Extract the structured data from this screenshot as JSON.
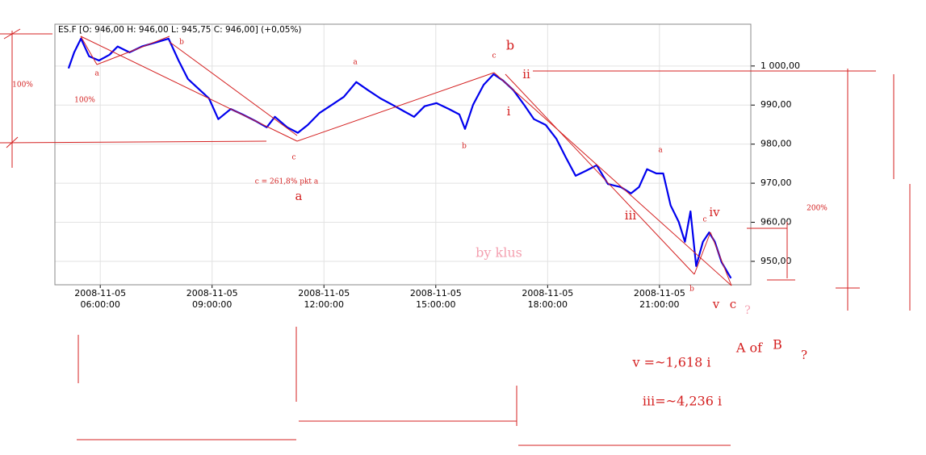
{
  "chart_data": {
    "type": "line",
    "header": "ES.F [O: 946,00  H: 946,00  L: 945,75  C: 946,00] (+0,05%)",
    "color": "#0000ee",
    "grid": true,
    "x": [
      "2008-11-05 05:09:00",
      "2008-11-05 05:18:00",
      "2008-11-05 05:29:00",
      "2008-11-05 05:42:00",
      "2008-11-05 05:58:00",
      "2008-11-05 06:15:00",
      "2008-11-05 06:28:00",
      "2008-11-05 06:47:00",
      "2008-11-05 07:07:00",
      "2008-11-05 07:33:00",
      "2008-11-05 07:50:00",
      "2008-11-05 08:06:00",
      "2008-11-05 08:21:00",
      "2008-11-05 08:38:00",
      "2008-11-05 08:55:00",
      "2008-11-05 09:10:00",
      "2008-11-05 09:30:00",
      "2008-11-05 09:49:00",
      "2008-11-05 10:09:00",
      "2008-11-05 10:28:00",
      "2008-11-05 10:41:00",
      "2008-11-05 11:01:00",
      "2008-11-05 11:18:00",
      "2008-11-05 11:34:00",
      "2008-11-05 11:53:00",
      "2008-11-05 12:13:00",
      "2008-11-05 12:32:00",
      "2008-11-05 12:52:00",
      "2008-11-05 13:11:00",
      "2008-11-05 13:31:00",
      "2008-11-05 13:50:00",
      "2008-11-05 14:09:00",
      "2008-11-05 14:25:00",
      "2008-11-05 14:42:00",
      "2008-11-05 15:01:00",
      "2008-11-05 15:21:00",
      "2008-11-05 15:38:00",
      "2008-11-05 15:47:00",
      "2008-11-05 16:00:00",
      "2008-11-05 16:17:00",
      "2008-11-05 16:33:00",
      "2008-11-05 16:48:00",
      "2008-11-05 17:05:00",
      "2008-11-05 17:22:00",
      "2008-11-05 17:38:00",
      "2008-11-05 17:57:00",
      "2008-11-05 18:14:00",
      "2008-11-05 18:29:00",
      "2008-11-05 18:45:00",
      "2008-11-05 19:02:00",
      "2008-11-05 19:19:00",
      "2008-11-05 19:37:00",
      "2008-11-05 19:58:00",
      "2008-11-05 20:14:00",
      "2008-11-05 20:27:00",
      "2008-11-05 20:40:00",
      "2008-11-05 20:55:00",
      "2008-11-05 21:06:00",
      "2008-11-05 21:18:00",
      "2008-11-05 21:31:00",
      "2008-11-05 21:41:00",
      "2008-11-05 21:50:00",
      "2008-11-05 21:59:00",
      "2008-11-05 22:10:00",
      "2008-11-05 22:20:00",
      "2008-11-05 22:29:00",
      "2008-11-05 22:40:00",
      "2008-11-05 22:55:00"
    ],
    "values": [
      999.4,
      1003.5,
      1007.0,
      1002.5,
      1001.4,
      1002.9,
      1005.0,
      1003.5,
      1005.0,
      1006.2,
      1007.0,
      1001.4,
      996.7,
      994.2,
      991.7,
      986.4,
      989.0,
      987.6,
      986.0,
      984.3,
      987.0,
      984.3,
      982.9,
      984.9,
      988.0,
      990.1,
      992.1,
      995.9,
      993.8,
      991.7,
      990.1,
      988.4,
      987.0,
      989.7,
      990.5,
      989.0,
      987.6,
      983.9,
      990.1,
      995.2,
      997.9,
      996.3,
      993.8,
      990.1,
      986.4,
      984.9,
      981.4,
      976.7,
      971.9,
      973.2,
      974.6,
      969.8,
      969.0,
      967.4,
      969.0,
      973.6,
      972.5,
      972.5,
      964.3,
      960.1,
      955.0,
      962.8,
      948.8,
      955.0,
      957.4,
      955.0,
      949.8,
      945.7
    ],
    "xlim": [
      "2008-11-05 04:47:00",
      "2008-11-05 23:27:00"
    ],
    "xticks": [
      {
        "value": "2008-11-05 06:00:00",
        "label": "2008-11-05\n06:00:00"
      },
      {
        "value": "2008-11-05 09:00:00",
        "label": "2008-11-05\n09:00:00"
      },
      {
        "value": "2008-11-05 12:00:00",
        "label": "2008-11-05\n12:00:00"
      },
      {
        "value": "2008-11-05 15:00:00",
        "label": "2008-11-05\n15:00:00"
      },
      {
        "value": "2008-11-05 18:00:00",
        "label": "2008-11-05\n18:00:00"
      },
      {
        "value": "2008-11-05 21:00:00",
        "label": "2008-11-05\n21:00:00"
      }
    ],
    "ylim": [
      944,
      1010.7
    ],
    "yticks": [
      {
        "value": 950,
        "label": "950,00"
      },
      {
        "value": 960,
        "label": "960,00"
      },
      {
        "value": 970,
        "label": "970,00"
      },
      {
        "value": 980,
        "label": "980,00"
      },
      {
        "value": 990,
        "label": "990,00"
      },
      {
        "value": 1000,
        "label": "1 000,00"
      }
    ],
    "annotations": [
      "100%",
      "100%",
      "a",
      "b",
      "c",
      "c = 261,8% pkt a",
      "a",
      "a",
      "c",
      "b",
      "ii",
      "i",
      "b",
      "a",
      "iii",
      "c",
      "iv",
      "b",
      "200%",
      "v",
      "c",
      "?",
      "by klus",
      "A of",
      "B",
      "?",
      "v =~1,618 i",
      "iii=~4,236 i"
    ]
  }
}
